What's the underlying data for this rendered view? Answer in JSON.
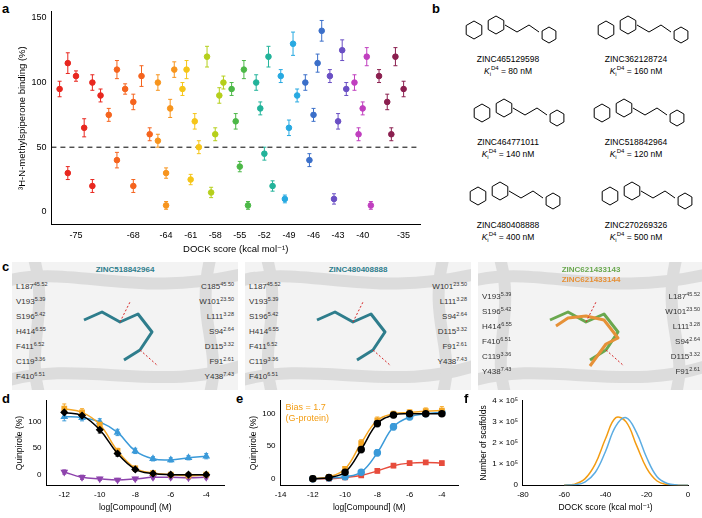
{
  "chart_data": [
    {
      "panel": "a",
      "type": "scatter",
      "x_label": "DOCK score (kcal mol⁻¹)",
      "y_label": "³H-N-methylspiperone binding (%)",
      "xlim": [
        -78,
        -33
      ],
      "xticks": [
        -75,
        -68,
        -64,
        -61,
        -58,
        -55,
        -52,
        -49,
        -46,
        -43,
        -40,
        -35
      ],
      "ylim": [
        -10,
        155
      ],
      "yticks": [
        0,
        50,
        100,
        150
      ],
      "reference_line": 50,
      "grid": false,
      "series": [
        {
          "color": "#e8271f",
          "marker": "circle",
          "x": [
            -77,
            -76,
            -76,
            -75,
            -74,
            -73,
            -73,
            -72
          ],
          "values": [
            95,
            30,
            115,
            105,
            65,
            20,
            100,
            90
          ],
          "errors": [
            6,
            5,
            8,
            4,
            7,
            5,
            6,
            5
          ]
        },
        {
          "color": "#f5641e",
          "marker": "circle",
          "x": [
            -71,
            -70,
            -70,
            -69,
            -68,
            -68,
            -67,
            -66
          ],
          "values": [
            75,
            40,
            110,
            95,
            20,
            85,
            105,
            60
          ],
          "errors": [
            5,
            6,
            7,
            4,
            5,
            6,
            8,
            5
          ]
        },
        {
          "color": "#f7941d",
          "marker": "circle",
          "x": [
            -65,
            -65,
            -64,
            -64,
            -63.5,
            -63
          ],
          "values": [
            100,
            55,
            30,
            5,
            80,
            110
          ],
          "errors": [
            6,
            5,
            4,
            3,
            7,
            6
          ]
        },
        {
          "color": "#f5c518",
          "marker": "circle",
          "x": [
            -62,
            -61.5,
            -61,
            -60.5,
            -60
          ],
          "values": [
            95,
            110,
            25,
            70,
            50
          ],
          "errors": [
            5,
            7,
            4,
            6,
            5
          ]
        },
        {
          "color": "#b5cf1b",
          "marker": "circle",
          "x": [
            -59,
            -58.5,
            -58,
            -57.5,
            -57
          ],
          "values": [
            120,
            15,
            60,
            90,
            100
          ],
          "errors": [
            8,
            4,
            5,
            6,
            5
          ]
        },
        {
          "color": "#4cb847",
          "marker": "circle",
          "x": [
            -56,
            -55.5,
            -55,
            -54.5,
            -54
          ],
          "values": [
            95,
            70,
            35,
            110,
            5
          ],
          "errors": [
            5,
            6,
            4,
            7,
            3
          ]
        },
        {
          "color": "#22b39a",
          "marker": "circle",
          "x": [
            -53,
            -52.5,
            -52,
            -51.5,
            -51
          ],
          "values": [
            100,
            80,
            45,
            120,
            20
          ],
          "errors": [
            6,
            5,
            5,
            8,
            4
          ]
        },
        {
          "color": "#27a9e1",
          "marker": "circle",
          "x": [
            -50,
            -49.5,
            -49,
            -48.5,
            -48
          ],
          "values": [
            105,
            10,
            65,
            130,
            90
          ],
          "errors": [
            5,
            3,
            6,
            9,
            5
          ]
        },
        {
          "color": "#3b6fc9",
          "marker": "circle",
          "x": [
            -47,
            -46.5,
            -46,
            -45.5,
            -45
          ],
          "values": [
            100,
            40,
            75,
            115,
            140
          ],
          "errors": [
            6,
            5,
            5,
            7,
            8
          ]
        },
        {
          "color": "#6a4fc4",
          "marker": "circle",
          "x": [
            -44,
            -43.5,
            -43,
            -42.5,
            -42
          ],
          "values": [
            105,
            10,
            70,
            125,
            95
          ],
          "errors": [
            5,
            4,
            6,
            8,
            5
          ]
        },
        {
          "color": "#c03fbf",
          "marker": "circle",
          "x": [
            -41,
            -40.5,
            -40,
            -39.5,
            -39
          ],
          "values": [
            100,
            60,
            80,
            120,
            5
          ],
          "errors": [
            6,
            5,
            5,
            7,
            3
          ]
        },
        {
          "color": "#8b1f4f",
          "marker": "circle",
          "x": [
            -38,
            -37,
            -36.5,
            -36,
            -35
          ],
          "values": [
            105,
            85,
            60,
            120,
            95
          ],
          "errors": [
            5,
            6,
            5,
            7,
            6
          ]
        }
      ]
    },
    {
      "panel": "d",
      "type": "line",
      "x_label": "log[Compound] (M)",
      "y_label": "Quinpirole (%)",
      "xlim": [
        -13,
        -3
      ],
      "xticks": [
        -12,
        -10,
        -8,
        -6,
        -4
      ],
      "ylim": [
        -20,
        140
      ],
      "yticks": [
        0,
        50,
        100
      ],
      "grid": false,
      "series": [
        {
          "color": "#000000",
          "marker": "diamond",
          "x": [
            -12,
            -11,
            -10,
            -9,
            -8,
            -7,
            -6,
            -5,
            -4
          ],
          "values": [
            118,
            112,
            85,
            40,
            10,
            2,
            0,
            0,
            0
          ],
          "errors": [
            8,
            6,
            6,
            5,
            4,
            3,
            3,
            3,
            3
          ]
        },
        {
          "color": "#f5a623",
          "marker": "square",
          "x": [
            -12,
            -11,
            -10,
            -9,
            -8,
            -7,
            -6,
            -5,
            -4
          ],
          "values": [
            125,
            118,
            95,
            45,
            12,
            3,
            0,
            -2,
            0
          ],
          "errors": [
            9,
            7,
            6,
            5,
            4,
            3,
            3,
            3,
            3
          ]
        },
        {
          "color": "#3b9ad9",
          "marker": "triangle",
          "x": [
            -12,
            -11,
            -10,
            -9,
            -8,
            -7,
            -6,
            -5,
            -4
          ],
          "values": [
            110,
            108,
            100,
            80,
            45,
            30,
            28,
            32,
            35
          ],
          "errors": [
            8,
            6,
            6,
            6,
            5,
            4,
            4,
            4,
            5
          ]
        },
        {
          "color": "#8e44ad",
          "marker": "triangle-down",
          "x": [
            -12,
            -11,
            -10,
            -9,
            -8,
            -7,
            -6,
            -5,
            -4
          ],
          "values": [
            5,
            -5,
            -8,
            -10,
            -8,
            -5,
            -5,
            -6,
            -5
          ],
          "errors": [
            4,
            4,
            3,
            3,
            3,
            3,
            3,
            3,
            3
          ]
        }
      ]
    },
    {
      "panel": "e",
      "type": "line",
      "x_label": "log[Compound] (M)",
      "y_label": "Quinpirole (%)",
      "xlim": [
        -14,
        -3
      ],
      "xticks": [
        -14,
        -12,
        -10,
        -8,
        -6,
        -4
      ],
      "ylim": [
        -10,
        120
      ],
      "yticks": [
        0,
        50,
        100
      ],
      "grid": false,
      "annotations": [
        {
          "text": "Bias = 1.7",
          "color": "#f39c12"
        },
        {
          "text": "(G-protein)",
          "color": "#f39c12"
        }
      ],
      "series": [
        {
          "color": "#000000",
          "marker": "circle",
          "x": [
            -12,
            -11,
            -10,
            -9,
            -8,
            -7,
            -6,
            -5,
            -4
          ],
          "values": [
            0,
            2,
            10,
            45,
            85,
            98,
            100,
            100,
            100
          ],
          "errors": [
            2,
            2,
            3,
            5,
            5,
            4,
            4,
            4,
            4
          ]
        },
        {
          "color": "#f5a623",
          "marker": "square",
          "x": [
            -12,
            -11,
            -10,
            -9,
            -8,
            -7,
            -6,
            -5,
            -4
          ],
          "values": [
            0,
            3,
            15,
            55,
            90,
            100,
            102,
            104,
            105
          ],
          "errors": [
            2,
            2,
            3,
            5,
            5,
            4,
            4,
            5,
            6
          ]
        },
        {
          "color": "#3b9ad9",
          "marker": "circle",
          "x": [
            -12,
            -11,
            -10,
            -9,
            -8,
            -7,
            -6,
            -5,
            -4
          ],
          "values": [
            0,
            1,
            3,
            10,
            40,
            80,
            95,
            100,
            102
          ],
          "errors": [
            2,
            2,
            2,
            3,
            5,
            5,
            4,
            4,
            5
          ]
        },
        {
          "color": "#e74c3c",
          "marker": "square",
          "x": [
            -12,
            -11,
            -10,
            -9,
            -8,
            -7,
            -6,
            -5,
            -4
          ],
          "values": [
            0,
            0,
            2,
            5,
            12,
            20,
            24,
            25,
            24
          ],
          "errors": [
            2,
            2,
            2,
            2,
            3,
            3,
            3,
            3,
            3
          ]
        }
      ]
    },
    {
      "panel": "f",
      "type": "line",
      "x_label": "DOCK score (kcal mol⁻¹)",
      "y_label": "Number of scaffolds",
      "xlim": [
        -80,
        0
      ],
      "xticks": [
        -80,
        -60,
        -40,
        -20,
        0
      ],
      "ylim": [
        0,
        400000
      ],
      "yticks": [
        0,
        {
          "value": 100000,
          "label": "1 × 10⁵"
        },
        {
          "value": 200000,
          "label": "2 × 10⁵"
        },
        {
          "value": 300000,
          "label": "3 × 10⁵"
        },
        {
          "value": 400000,
          "label": "4 × 10⁵"
        }
      ],
      "grid": false,
      "series": [
        {
          "color": "#5dade2",
          "x": [
            -60,
            -55,
            -50,
            -45,
            -40,
            -35,
            -30,
            -25,
            -20,
            -15,
            -10,
            -5,
            0
          ],
          "values": [
            0,
            2000,
            15000,
            60000,
            160000,
            280000,
            320000,
            250000,
            130000,
            40000,
            8000,
            1000,
            0
          ]
        },
        {
          "color": "#f39c12",
          "x": [
            -60,
            -55,
            -50,
            -45,
            -40,
            -35,
            -30,
            -25,
            -20,
            -15,
            -10,
            -5,
            0
          ],
          "values": [
            1000,
            5000,
            30000,
            100000,
            220000,
            320000,
            300000,
            190000,
            80000,
            20000,
            3000,
            0,
            0
          ]
        }
      ]
    }
  ],
  "structures": {
    "panel": "b",
    "compounds": [
      {
        "name": "ZINC465129598",
        "ki_symbol": "K",
        "ki_sub": "i",
        "ki_sup": "D4",
        "relation": "=",
        "ki": 80,
        "unit": "nM"
      },
      {
        "name": "ZINC362128724",
        "ki_symbol": "K",
        "ki_sub": "i",
        "ki_sup": "D4",
        "relation": "=",
        "ki": 160,
        "unit": "nM"
      },
      {
        "name": "ZINC464771011",
        "ki_symbol": "K",
        "ki_sub": "i",
        "ki_sup": "D4",
        "relation": "=",
        "ki": 140,
        "unit": "nM"
      },
      {
        "name": "ZINC518842964",
        "ki_symbol": "K",
        "ki_sub": "i",
        "ki_sup": "D4",
        "relation": "=",
        "ki": 120,
        "unit": "nM"
      },
      {
        "name": "ZINC480408888",
        "ki_symbol": "K",
        "ki_sub": "i",
        "ki_sup": "D4",
        "relation": "=",
        "ki": 400,
        "unit": "nM"
      },
      {
        "name": "ZINC270269326",
        "ki_symbol": "K",
        "ki_sub": "i",
        "ki_sup": "D4",
        "relation": "=",
        "ki": 500,
        "unit": "nM"
      }
    ]
  },
  "poses": {
    "panel": "c",
    "views": [
      {
        "ligands": [
          {
            "name": "ZINC518842964",
            "color": "#2e7d8c"
          }
        ],
        "residues": [
          {
            "name": "L187",
            "bw": "45.52"
          },
          {
            "name": "V193",
            "bw": "5.39"
          },
          {
            "name": "S196",
            "bw": "5.42"
          },
          {
            "name": "H414",
            "bw": "6.55"
          },
          {
            "name": "F411",
            "bw": "6.52"
          },
          {
            "name": "C119",
            "bw": "3.36"
          },
          {
            "name": "F410",
            "bw": "6.51"
          },
          {
            "name": "C185",
            "bw": "45.50"
          },
          {
            "name": "W101",
            "bw": "23.50"
          },
          {
            "name": "L111",
            "bw": "3.28"
          },
          {
            "name": "S94",
            "bw": "2.64"
          },
          {
            "name": "D115",
            "bw": "3.32"
          },
          {
            "name": "F91",
            "bw": "2.61"
          },
          {
            "name": "Y438",
            "bw": "7.43"
          }
        ]
      },
      {
        "ligands": [
          {
            "name": "ZINC480408888",
            "color": "#2e7d8c"
          }
        ],
        "residues": [
          {
            "name": "L187",
            "bw": "45.52"
          },
          {
            "name": "V193",
            "bw": "5.39"
          },
          {
            "name": "S196",
            "bw": "5.42"
          },
          {
            "name": "H414",
            "bw": "6.55"
          },
          {
            "name": "F411",
            "bw": "6.52"
          },
          {
            "name": "C119",
            "bw": "3.36"
          },
          {
            "name": "F410",
            "bw": "6.51"
          },
          {
            "name": "W101",
            "bw": "23.50"
          },
          {
            "name": "L111",
            "bw": "3.28"
          },
          {
            "name": "S94",
            "bw": "2.64"
          },
          {
            "name": "D115",
            "bw": "3.32"
          },
          {
            "name": "F91",
            "bw": "2.61"
          },
          {
            "name": "Y438",
            "bw": "7.43"
          }
        ]
      },
      {
        "ligands": [
          {
            "name": "ZINC621433143",
            "color": "#6aa84f"
          },
          {
            "name": "ZINC621433144",
            "color": "#e69138"
          }
        ],
        "residues": [
          {
            "name": "V193",
            "bw": "5.39"
          },
          {
            "name": "S196",
            "bw": "5.42"
          },
          {
            "name": "H414",
            "bw": "6.55"
          },
          {
            "name": "F410",
            "bw": "6.51"
          },
          {
            "name": "C119",
            "bw": "3.36"
          },
          {
            "name": "Y438",
            "bw": "7.43"
          },
          {
            "name": "L187",
            "bw": "45.52"
          },
          {
            "name": "W101",
            "bw": "23.50"
          },
          {
            "name": "L111",
            "bw": "3.28"
          },
          {
            "name": "S94",
            "bw": "2.64"
          },
          {
            "name": "D115",
            "bw": "3.32"
          },
          {
            "name": "F91",
            "bw": "2.61"
          }
        ]
      }
    ]
  }
}
